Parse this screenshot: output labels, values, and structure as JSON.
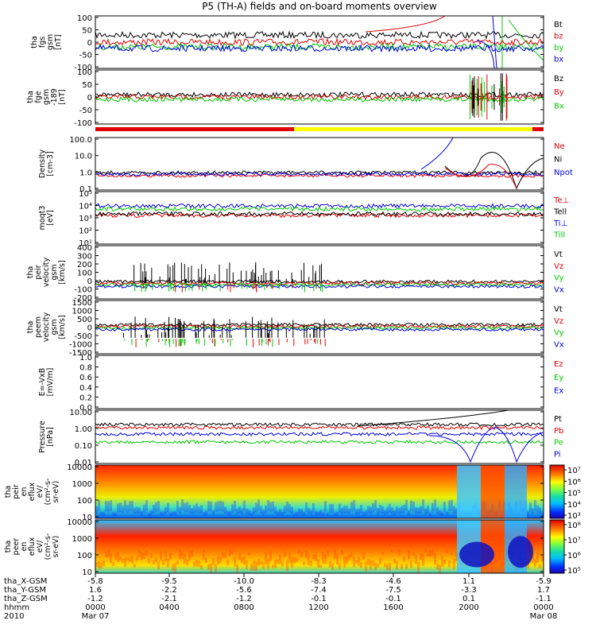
{
  "title": "P5 (TH-A) fields and on-board moments overview",
  "colors": {
    "black": "#000000",
    "red": "#e00000",
    "green": "#00c800",
    "blue": "#0000e0",
    "yellow": "#ffff00"
  },
  "chart_data": [
    {
      "type": "line",
      "id": "fgs",
      "ylabel": [
        "tha",
        "fgs",
        "gsm",
        "[nT]"
      ],
      "ylim": [
        -100,
        100
      ],
      "yticks": [
        "100",
        "50",
        "0",
        "-50",
        "-100"
      ],
      "legend": [
        {
          "label": "Bt",
          "color": "black"
        },
        {
          "label": "bz",
          "color": "red"
        },
        {
          "label": "by",
          "color": "green"
        },
        {
          "label": "bx",
          "color": "blue"
        }
      ]
    },
    {
      "type": "line",
      "id": "fge",
      "ylabel": [
        "tha",
        "fge",
        "gsm",
        "-189",
        "[nT]"
      ],
      "ylim": [
        -120,
        130
      ],
      "yticks": [
        "100",
        "50",
        "0",
        "-50",
        "-100"
      ],
      "legend": [
        {
          "label": "Bz",
          "color": "black"
        },
        {
          "label": "By",
          "color": "red"
        },
        {
          "label": "Bx",
          "color": "green"
        }
      ]
    },
    {
      "type": "line",
      "id": "density",
      "ylabel": [
        "Density",
        "[cm-3]"
      ],
      "scale": "log",
      "yticks": [
        "100.0",
        "10.0",
        "1.0",
        "0.1"
      ],
      "legend": [
        {
          "label": "Ne",
          "color": "red"
        },
        {
          "label": "Ni",
          "color": "black"
        },
        {
          "label": "Npot",
          "color": "blue"
        }
      ]
    },
    {
      "type": "line",
      "id": "temp",
      "ylabel": [
        "moqt3",
        "[eV]"
      ],
      "scale": "log",
      "yticks": [
        "10⁵",
        "10⁴",
        "10³",
        "10²",
        "10¹"
      ],
      "legend": [
        {
          "label": "Te⊥",
          "color": "red"
        },
        {
          "label": "Tell",
          "color": "black"
        },
        {
          "label": "Ti⊥",
          "color": "blue"
        },
        {
          "label": "Till",
          "color": "green"
        }
      ]
    },
    {
      "type": "line",
      "id": "peirv",
      "ylabel": [
        "tha",
        "peir",
        "velocity",
        "gsm",
        "[km/s]"
      ],
      "ylim": [
        -200,
        400
      ],
      "yticks": [
        "400",
        "300",
        "200",
        "100",
        "0",
        "-100",
        "-200"
      ],
      "legend": [
        {
          "label": "Vt",
          "color": "black"
        },
        {
          "label": "Vz",
          "color": "red"
        },
        {
          "label": "Vy",
          "color": "green"
        },
        {
          "label": "Vx",
          "color": "blue"
        }
      ]
    },
    {
      "type": "line",
      "id": "peerv",
      "ylabel": [
        "tha",
        "peem",
        "velocity",
        "gsm",
        "[km/s]"
      ],
      "ylim": [
        -1500,
        1500
      ],
      "yticks": [
        "1500",
        "1000",
        "500",
        "0",
        "-500",
        "-1000",
        "-1500"
      ],
      "legend": [
        {
          "label": "Vt",
          "color": "black"
        },
        {
          "label": "Vz",
          "color": "red"
        },
        {
          "label": "Vy",
          "color": "green"
        },
        {
          "label": "Vx",
          "color": "blue"
        }
      ]
    },
    {
      "type": "line",
      "id": "efield",
      "ylabel": [
        "E=-VxB",
        "[mV/m]"
      ],
      "ylim": [
        0,
        1
      ],
      "yticks": [
        "1.0",
        "0.8",
        "0.6",
        "0.4",
        "0.2",
        "0.0"
      ],
      "legend": [
        {
          "label": "Ez",
          "color": "red"
        },
        {
          "label": "Ey",
          "color": "green"
        },
        {
          "label": "Ex",
          "color": "blue"
        }
      ]
    },
    {
      "type": "line",
      "id": "pressure",
      "ylabel": [
        "Pressure",
        "[nPa]"
      ],
      "scale": "log",
      "yticks": [
        "10.00",
        "1.00",
        "0.10",
        "0.01"
      ],
      "legend": [
        {
          "label": "Pt",
          "color": "black"
        },
        {
          "label": "Pb",
          "color": "red"
        },
        {
          "label": "Pe",
          "color": "green"
        },
        {
          "label": "Pi",
          "color": "blue"
        }
      ]
    },
    {
      "type": "heatmap",
      "id": "peir_en",
      "ylabel": [
        "tha",
        "peir",
        "en",
        "eflux",
        "eV/",
        "(cm²-s-",
        "sr-eV)"
      ],
      "yticks": [
        "10000",
        "1000",
        "100",
        "10"
      ],
      "colorbar": [
        "10⁷",
        "10⁶",
        "10⁵",
        "10⁴",
        "10³"
      ]
    },
    {
      "type": "heatmap",
      "id": "peer_en",
      "ylabel": [
        "tha",
        "peer",
        "en",
        "eflux",
        "eV/",
        "(cm²-s-",
        "sr-eV)"
      ],
      "yticks": [
        "10000",
        "1000",
        "100",
        "10"
      ],
      "colorbar": [
        "10⁸",
        "10⁷",
        "10⁶",
        "10⁵"
      ]
    }
  ],
  "xaxis": {
    "rows": [
      {
        "label": "tha_X-GSM",
        "values": [
          "-5.8",
          "-9.5",
          "-10.0",
          "-8.3",
          "-4.6",
          "1.1",
          "-5.9"
        ]
      },
      {
        "label": "tha_Y-GSM",
        "values": [
          "1.6",
          "-2.2",
          "-5.6",
          "-7.4",
          "-7.5",
          "-3.3",
          "1.7"
        ]
      },
      {
        "label": "tha_Z-GSM",
        "values": [
          "-1.2",
          "-2.1",
          "-1.2",
          "-0.1",
          "-0.1",
          "0.1",
          "-1.1"
        ]
      },
      {
        "label": "hhmm",
        "values": [
          "0000",
          "0400",
          "0800",
          "1200",
          "1600",
          "2000",
          "0000"
        ]
      },
      {
        "label": "2010",
        "values": [
          "Mar 07",
          "",
          "",
          "",
          "",
          "",
          "Mar 08"
        ]
      }
    ]
  }
}
